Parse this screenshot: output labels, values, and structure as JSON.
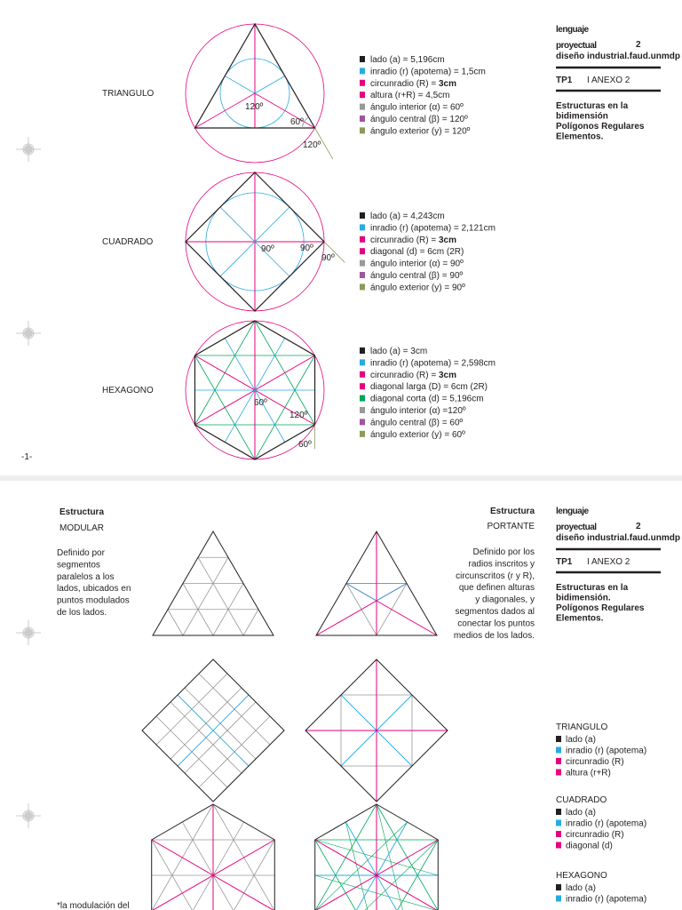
{
  "sheet1": {
    "header": {
      "brand1": "lenguaje",
      "brand2": "proyectual",
      "number": "2",
      "school": "diseño industrial.faud.unmdp",
      "tp": "TP1",
      "annex": "I ANEXO 2",
      "subtitle": [
        "Estructuras en la",
        "bidimensión",
        "Polígonos Regulares",
        "Elementos."
      ]
    },
    "shapes": [
      {
        "name": "TRIANGULO",
        "angles": [
          "120º",
          "60º",
          "120º"
        ],
        "legend": [
          {
            "text": "lado (a) = 5,196cm",
            "color": "#231f20"
          },
          {
            "text": "inradio (r) (apotema) = 1,5cm",
            "color": "#29abe2"
          },
          {
            "text": "circunradio (R) = ",
            "bold": "3cm",
            "color": "#e6007e"
          },
          {
            "text": "altura (r+R) = 4,5cm",
            "color": "#e6007e"
          },
          {
            "text": "ángulo interior (α) = 60º",
            "color": "#999999"
          },
          {
            "text": "ángulo central (β) = 120º",
            "color": "#a0559c"
          },
          {
            "text": "ángulo exterior (y) = 120º",
            "color": "#8c9a5b"
          }
        ]
      },
      {
        "name": "CUADRADO",
        "angles": [
          "90º",
          "90º",
          "90º"
        ],
        "legend": [
          {
            "text": "lado (a) = 4,243cm",
            "color": "#231f20"
          },
          {
            "text": "inradio (r) (apotema) = 2,121cm",
            "color": "#29abe2"
          },
          {
            "text": "circunradio (R) = ",
            "bold": "3cm",
            "color": "#e6007e"
          },
          {
            "text": "diagonal (d) = 6cm (2R)",
            "color": "#e6007e"
          },
          {
            "text": "ángulo interior (α) = 90º",
            "color": "#999999"
          },
          {
            "text": "ángulo central (β) = 90º",
            "color": "#a0559c"
          },
          {
            "text": "ángulo exterior (y) = 90º",
            "color": "#8c9a5b"
          }
        ]
      },
      {
        "name": "HEXAGONO",
        "angles": [
          "60º",
          "120º",
          "60º"
        ],
        "legend": [
          {
            "text": "lado (a) = 3cm",
            "color": "#231f20"
          },
          {
            "text": "inradio (r) (apotema) = 2,598cm",
            "color": "#29abe2"
          },
          {
            "text": "circunradio (R) = ",
            "bold": "3cm",
            "color": "#e6007e"
          },
          {
            "text": "diagonal larga (D) = 6cm (2R)",
            "color": "#e6007e"
          },
          {
            "text": "diagonal corta (d) = 5,196cm",
            "color": "#00a65a"
          },
          {
            "text": "ángulo interior (α) =120º",
            "color": "#999999"
          },
          {
            "text": "ángulo central (β) = 60º",
            "color": "#a0559c"
          },
          {
            "text": "ángulo exterior (y) = 60º",
            "color": "#8c9a5b"
          }
        ]
      }
    ],
    "page_number": "-1-"
  },
  "sheet2": {
    "header": {
      "brand1": "lenguaje",
      "brand2": "proyectual",
      "number": "2",
      "school": "diseño industrial.faud.unmdp",
      "tp": "TP1",
      "annex": "I ANEXO 2",
      "subtitle": [
        "Estructuras en la",
        "bidimensión.",
        "Polígonos Regulares",
        "Elementos."
      ]
    },
    "modular": {
      "kicker": "Estructura",
      "title": "MODULAR",
      "description": [
        "Definido por",
        "segmentos",
        "paralelos a los",
        "lados, ubicados en",
        "puntos modulados",
        "de los lados."
      ]
    },
    "portante": {
      "kicker": "Estructura",
      "title": "PORTANTE",
      "description": [
        "Definido por los",
        "radios inscritos y",
        "circunscritos (r y R),",
        "que definen alturas",
        "y diagonales, y",
        "segmentos dados al",
        "conectar los puntos",
        "medios de los lados."
      ]
    },
    "legend": [
      {
        "name": "TRIANGULO",
        "items": [
          {
            "text": "lado (a)",
            "color": "#231f20"
          },
          {
            "text": "inradio (r) (apotema)",
            "color": "#29abe2"
          },
          {
            "text": "circunradio (R)",
            "color": "#e6007e"
          },
          {
            "text": "altura (r+R)",
            "color": "#e6007e"
          }
        ]
      },
      {
        "name": "CUADRADO",
        "items": [
          {
            "text": "lado (a)",
            "color": "#231f20"
          },
          {
            "text": "inradio (r) (apotema)",
            "color": "#29abe2"
          },
          {
            "text": "circunradio (R)",
            "color": "#e6007e"
          },
          {
            "text": "diagonal (d)",
            "color": "#e6007e"
          }
        ]
      },
      {
        "name": "HEXAGONO",
        "items": [
          {
            "text": "lado (a)",
            "color": "#231f20"
          },
          {
            "text": "inradio (r) (apotema)",
            "color": "#29abe2"
          }
        ]
      }
    ],
    "footnote": "*la modulación del"
  }
}
